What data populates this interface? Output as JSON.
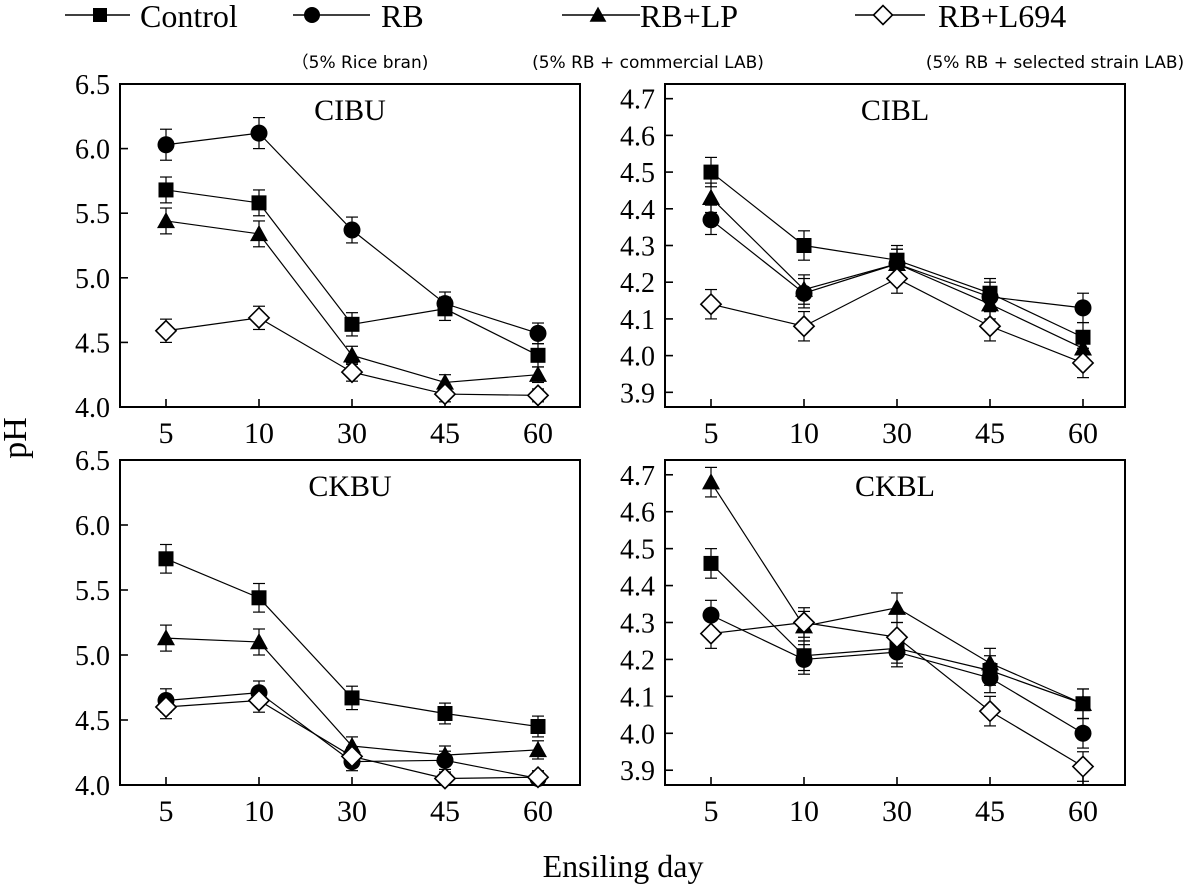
{
  "figure": {
    "ylabel": "pH",
    "xlabel": "Ensiling day"
  },
  "legend": [
    {
      "name": "Control",
      "marker": "square",
      "note": ""
    },
    {
      "name": "RB",
      "marker": "circle",
      "note": "（5% Rice bran)"
    },
    {
      "name": "RB+LP",
      "marker": "triangle",
      "note": "(5% RB + commercial LAB)"
    },
    {
      "name": "RB+L694",
      "marker": "diamond",
      "note": "(5% RB + selected strain LAB)"
    }
  ],
  "colors": {
    "line": "#000000",
    "fill": "#000000",
    "open_fill": "#ffffff"
  },
  "chart_data": [
    {
      "type": "line",
      "title": "CIBU",
      "categories": [
        "5",
        "10",
        "30",
        "45",
        "60"
      ],
      "ylim": [
        4.0,
        6.5
      ],
      "yticks": [
        "4.0",
        "4.5",
        "5.0",
        "5.5",
        "6.0",
        "6.5"
      ],
      "series": [
        {
          "name": "Control",
          "values": [
            5.68,
            5.58,
            4.64,
            4.76,
            4.4
          ],
          "errors": [
            0.1,
            0.1,
            0.09,
            0.09,
            0.09
          ]
        },
        {
          "name": "RB",
          "values": [
            6.03,
            6.12,
            5.37,
            4.8,
            4.57
          ],
          "errors": [
            0.12,
            0.12,
            0.1,
            0.09,
            0.08
          ]
        },
        {
          "name": "RB+LP",
          "values": [
            5.44,
            5.34,
            4.4,
            4.19,
            4.25
          ],
          "errors": [
            0.1,
            0.1,
            0.07,
            0.06,
            0.06
          ]
        },
        {
          "name": "RB+L694",
          "values": [
            4.59,
            4.69,
            4.27,
            4.1,
            4.09
          ],
          "errors": [
            0.09,
            0.09,
            0.07,
            0.06,
            0.05
          ]
        }
      ]
    },
    {
      "type": "line",
      "title": "CIBL",
      "categories": [
        "5",
        "10",
        "30",
        "45",
        "60"
      ],
      "ylim": [
        3.86,
        4.74
      ],
      "yticks": [
        "3.9",
        "4.0",
        "4.1",
        "4.2",
        "4.3",
        "4.4",
        "4.5",
        "4.6",
        "4.7"
      ],
      "series": [
        {
          "name": "Control",
          "values": [
            4.5,
            4.3,
            4.26,
            4.17,
            4.05
          ],
          "errors": [
            0.04,
            0.04,
            0.04,
            0.04,
            0.04
          ]
        },
        {
          "name": "RB",
          "values": [
            4.37,
            4.17,
            4.25,
            4.16,
            4.13
          ],
          "errors": [
            0.04,
            0.04,
            0.04,
            0.04,
            0.04
          ]
        },
        {
          "name": "RB+LP",
          "values": [
            4.43,
            4.18,
            4.25,
            4.14,
            4.02
          ],
          "errors": [
            0.04,
            0.04,
            0.04,
            0.04,
            0.04
          ]
        },
        {
          "name": "RB+L694",
          "values": [
            4.14,
            4.08,
            4.21,
            4.08,
            3.98
          ],
          "errors": [
            0.04,
            0.04,
            0.04,
            0.04,
            0.04
          ]
        }
      ]
    },
    {
      "type": "line",
      "title": "CKBU",
      "categories": [
        "5",
        "10",
        "30",
        "45",
        "60"
      ],
      "ylim": [
        4.0,
        6.5
      ],
      "yticks": [
        "4.0",
        "4.5",
        "5.0",
        "5.5",
        "6.0",
        "6.5"
      ],
      "series": [
        {
          "name": "Control",
          "values": [
            5.74,
            5.44,
            4.67,
            4.55,
            4.45
          ],
          "errors": [
            0.11,
            0.11,
            0.09,
            0.08,
            0.08
          ]
        },
        {
          "name": "RB",
          "values": [
            4.65,
            4.71,
            4.18,
            4.19,
            4.05
          ],
          "errors": [
            0.09,
            0.09,
            0.07,
            0.07,
            0.05
          ]
        },
        {
          "name": "RB+LP",
          "values": [
            5.13,
            5.1,
            4.3,
            4.23,
            4.27
          ],
          "errors": [
            0.1,
            0.1,
            0.07,
            0.07,
            0.07
          ]
        },
        {
          "name": "RB+L694",
          "values": [
            4.6,
            4.65,
            4.22,
            4.05,
            4.06
          ],
          "errors": [
            0.09,
            0.09,
            0.07,
            0.05,
            0.05
          ]
        }
      ]
    },
    {
      "type": "line",
      "title": "CKBL",
      "categories": [
        "5",
        "10",
        "30",
        "45",
        "60"
      ],
      "ylim": [
        3.86,
        4.74
      ],
      "yticks": [
        "3.9",
        "4.0",
        "4.1",
        "4.2",
        "4.3",
        "4.4",
        "4.5",
        "4.6",
        "4.7"
      ],
      "series": [
        {
          "name": "Control",
          "values": [
            4.46,
            4.21,
            4.23,
            4.17,
            4.08
          ],
          "errors": [
            0.04,
            0.04,
            0.04,
            0.04,
            0.04
          ]
        },
        {
          "name": "RB",
          "values": [
            4.32,
            4.2,
            4.22,
            4.15,
            4.0
          ],
          "errors": [
            0.04,
            0.04,
            0.04,
            0.04,
            0.04
          ]
        },
        {
          "name": "RB+LP",
          "values": [
            4.68,
            4.29,
            4.34,
            4.19,
            4.08
          ],
          "errors": [
            0.04,
            0.04,
            0.04,
            0.04,
            0.04
          ]
        },
        {
          "name": "RB+L694",
          "values": [
            4.27,
            4.3,
            4.26,
            4.06,
            3.91
          ],
          "errors": [
            0.04,
            0.04,
            0.04,
            0.04,
            0.04
          ]
        }
      ]
    }
  ]
}
